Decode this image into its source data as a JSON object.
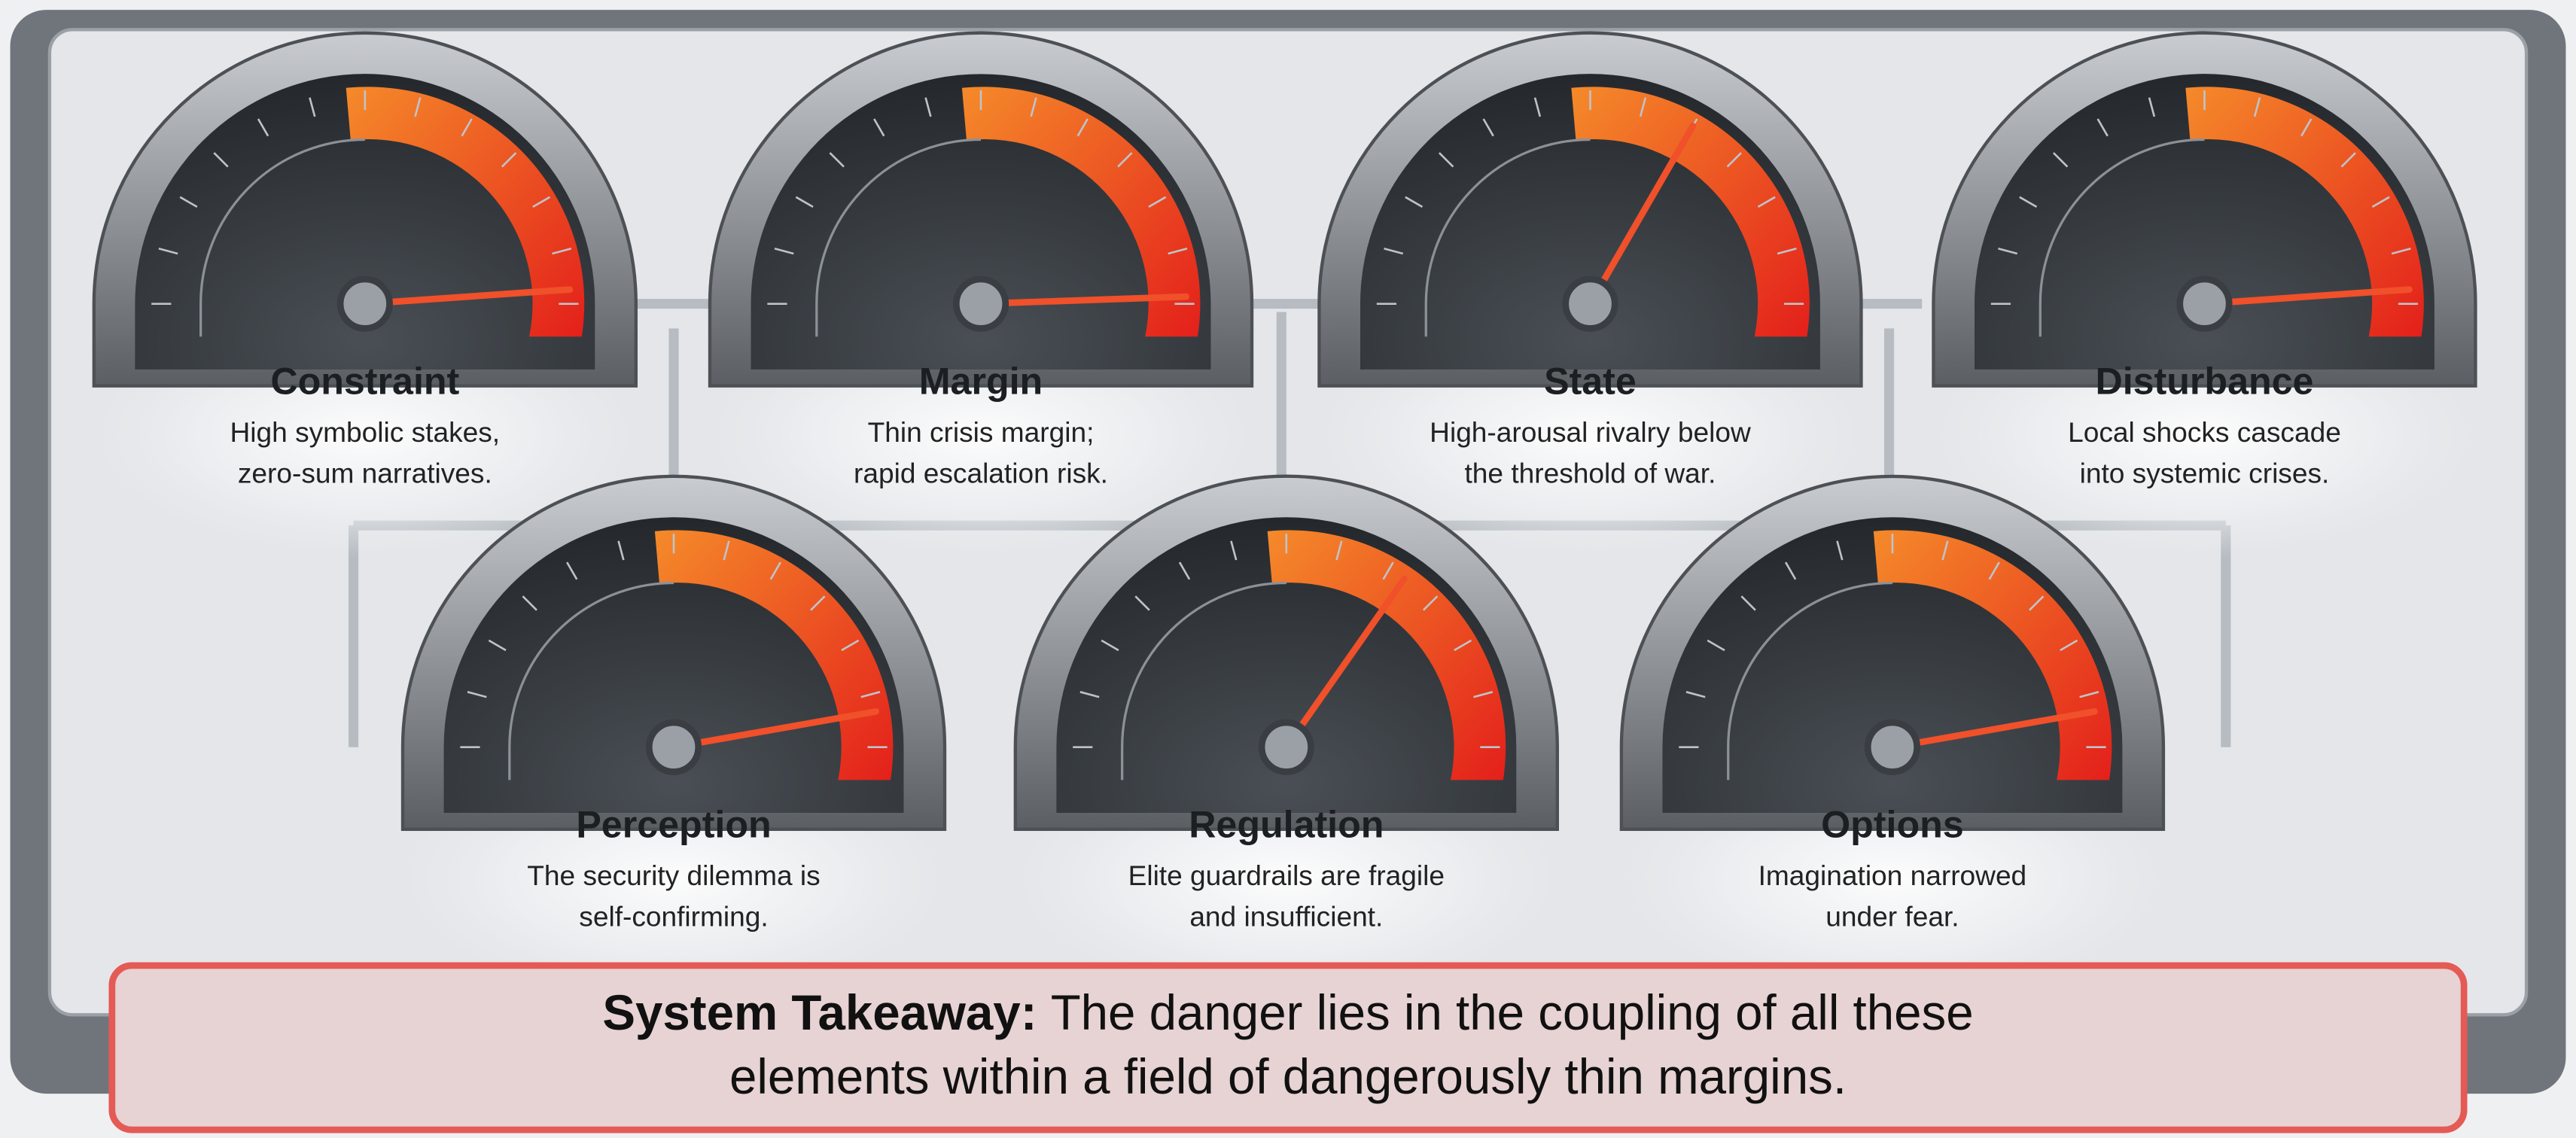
{
  "gauges": [
    {
      "title": "Constraint",
      "description": [
        "High symbolic stakes,",
        "zero-sum narratives."
      ]
    },
    {
      "title": "Margin",
      "description": [
        "Thin crisis margin;",
        "rapid escalation risk."
      ]
    },
    {
      "title": "State",
      "description": [
        "High-arousal rivalry below",
        "the threshold of war."
      ]
    },
    {
      "title": "Disturbance",
      "description": [
        "Local shocks cascade",
        "into systemic crises."
      ]
    },
    {
      "title": "Perception",
      "description": [
        "The security dilemma is",
        "self-confirming."
      ]
    },
    {
      "title": "Regulation",
      "description": [
        "Elite guardrails are fragile",
        "and insufficient."
      ]
    },
    {
      "title": "Options",
      "description": [
        "Imagination narrowed",
        "under fear."
      ]
    }
  ],
  "takeaway": {
    "label": "System Takeaway:",
    "lines": [
      "The danger lies in the coupling of all these",
      "elements within a field of dangerously thin margins."
    ]
  }
}
